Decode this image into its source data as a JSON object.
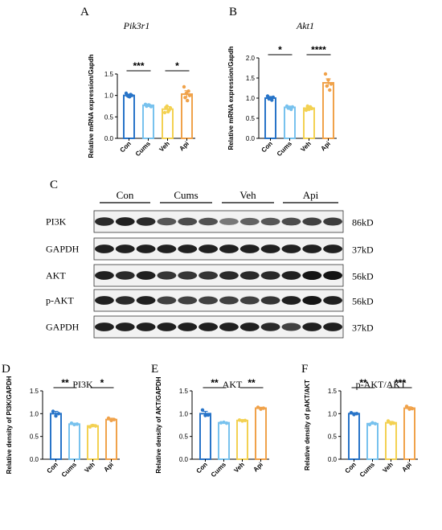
{
  "panels": [
    {
      "letter": "A",
      "title": "Pik3r1",
      "title_style": "italic",
      "ylabel": "Relative mRNA expression/Gapdh",
      "ylim": [
        0,
        1.5
      ],
      "ticks": [
        "0.0",
        "0.5",
        "1.0",
        "1.5"
      ],
      "categories": [
        "Con",
        "Cums",
        "Veh",
        "Api"
      ],
      "means": [
        1.0,
        0.77,
        0.68,
        1.03
      ],
      "errors": [
        0.03,
        0.02,
        0.06,
        0.08
      ],
      "points": [
        [
          1.05,
          1.0,
          0.98,
          0.97,
          1.02,
          1.0
        ],
        [
          0.79,
          0.75,
          0.77,
          0.78,
          0.76,
          0.74
        ],
        [
          0.6,
          0.72,
          0.75,
          0.62,
          0.66,
          0.71
        ],
        [
          1.2,
          0.95,
          1.05,
          0.88,
          1.1,
          1.0
        ]
      ],
      "sig": [
        {
          "from": 0,
          "to": 1,
          "label": "***"
        },
        {
          "from": 2,
          "to": 3,
          "label": "*"
        }
      ]
    },
    {
      "letter": "B",
      "title": "Akt1",
      "title_style": "italic",
      "ylabel": "Relative mRNA expression/Gapdh",
      "ylim": [
        0,
        2.0
      ],
      "ticks": [
        "0.0",
        "0.5",
        "1.0",
        "1.5",
        "2.0"
      ],
      "categories": [
        "Con",
        "Cums",
        "Veh",
        "Api"
      ],
      "means": [
        1.0,
        0.77,
        0.75,
        1.38
      ],
      "errors": [
        0.04,
        0.03,
        0.05,
        0.1
      ],
      "points": [
        [
          1.05,
          0.98,
          1.0,
          0.95,
          1.02
        ],
        [
          0.8,
          0.75,
          0.77,
          0.72,
          0.78
        ],
        [
          0.7,
          0.8,
          0.72,
          0.78,
          0.74
        ],
        [
          1.6,
          1.3,
          1.45,
          1.2,
          1.35
        ]
      ],
      "sig": [
        {
          "from": 0,
          "to": 1,
          "label": "*"
        },
        {
          "from": 2,
          "to": 3,
          "label": "****"
        }
      ]
    },
    {
      "letter": "D",
      "title": "PI3K",
      "title_style": "normal",
      "ylabel": "Relative density of PI3K/GAPDH",
      "ylim": [
        0,
        1.5
      ],
      "ticks": [
        "0.0",
        "0.5",
        "1.0",
        "1.5"
      ],
      "categories": [
        "Con",
        "Cums",
        "Veh",
        "Api"
      ],
      "means": [
        1.0,
        0.77,
        0.73,
        0.87
      ],
      "errors": [
        0.05,
        0.02,
        0.03,
        0.03
      ],
      "points": [
        [
          1.05,
          0.95,
          1.0
        ],
        [
          0.79,
          0.76,
          0.77
        ],
        [
          0.71,
          0.74,
          0.73
        ],
        [
          0.9,
          0.85,
          0.87
        ]
      ],
      "sig": [
        {
          "from": 0,
          "to": 1,
          "label": "**"
        },
        {
          "from": 2,
          "to": 3,
          "label": "*"
        }
      ]
    },
    {
      "letter": "E",
      "title": "AKT",
      "title_style": "normal",
      "ylabel": "Relative density of AKT/GAPDH",
      "ylim": [
        0,
        1.5
      ],
      "ticks": [
        "0.0",
        "0.5",
        "1.0",
        "1.5"
      ],
      "categories": [
        "Con",
        "Cums",
        "Veh",
        "Api"
      ],
      "means": [
        1.0,
        0.8,
        0.85,
        1.12
      ],
      "errors": [
        0.05,
        0.01,
        0.02,
        0.02
      ],
      "points": [
        [
          1.08,
          0.96,
          0.97
        ],
        [
          0.8,
          0.81,
          0.79
        ],
        [
          0.86,
          0.84,
          0.85
        ],
        [
          1.14,
          1.1,
          1.12
        ]
      ],
      "sig": [
        {
          "from": 0,
          "to": 1,
          "label": "**"
        },
        {
          "from": 2,
          "to": 3,
          "label": "**"
        }
      ]
    },
    {
      "letter": "F",
      "title": "p-AKT/AKT",
      "title_style": "normal",
      "ylabel": "Relative density of pAKT/AKT",
      "ylim": [
        0,
        1.5
      ],
      "ticks": [
        "0.0",
        "0.5",
        "1.0",
        "1.5"
      ],
      "categories": [
        "Con",
        "Cums",
        "Veh",
        "Api"
      ],
      "means": [
        1.0,
        0.78,
        0.8,
        1.12
      ],
      "errors": [
        0.02,
        0.02,
        0.03,
        0.03
      ],
      "points": [
        [
          1.02,
          0.98,
          1.0
        ],
        [
          0.76,
          0.8,
          0.78
        ],
        [
          0.84,
          0.78,
          0.79
        ],
        [
          1.16,
          1.1,
          1.11
        ]
      ],
      "sig": [
        {
          "from": 0,
          "to": 1,
          "label": "**"
        },
        {
          "from": 2,
          "to": 3,
          "label": "***"
        }
      ]
    }
  ],
  "colors": [
    "#2874c8",
    "#78c2ee",
    "#f3d152",
    "#f0a24a"
  ],
  "blot": {
    "letter": "C",
    "groups": [
      "Con",
      "Cums",
      "Veh",
      "Api"
    ],
    "rows": [
      {
        "label": "PI3K",
        "size": "86kD",
        "intensity": [
          0.9,
          0.95,
          0.9,
          0.7,
          0.75,
          0.72,
          0.55,
          0.65,
          0.7,
          0.75,
          0.8,
          0.82
        ]
      },
      {
        "label": "GAPDH",
        "size": "37kD",
        "intensity": [
          0.95,
          0.95,
          0.95,
          0.95,
          0.95,
          0.95,
          0.95,
          0.95,
          0.95,
          0.95,
          0.95,
          0.95
        ]
      },
      {
        "label": "AKT",
        "size": "56kD",
        "intensity": [
          0.95,
          0.9,
          0.95,
          0.85,
          0.85,
          0.85,
          0.9,
          0.9,
          0.9,
          0.95,
          1.0,
          1.0
        ]
      },
      {
        "label": "p-AKT",
        "size": "56kD",
        "intensity": [
          0.95,
          0.9,
          0.95,
          0.8,
          0.8,
          0.8,
          0.8,
          0.8,
          0.85,
          0.95,
          1.0,
          0.95
        ]
      },
      {
        "label": "GAPDH",
        "size": "37kD",
        "intensity": [
          0.95,
          0.95,
          0.95,
          0.95,
          0.95,
          0.95,
          0.95,
          0.95,
          0.9,
          0.8,
          0.95,
          0.95
        ]
      }
    ]
  },
  "chart_data": [
    {
      "type": "bar",
      "title": "Pik3r1",
      "ylabel": "Relative mRNA expression/Gapdh",
      "categories": [
        "Con",
        "Cums",
        "Veh",
        "Api"
      ],
      "values": [
        1.0,
        0.77,
        0.68,
        1.03
      ],
      "ylim": [
        0,
        1.5
      ]
    },
    {
      "type": "bar",
      "title": "Akt1",
      "ylabel": "Relative mRNA expression/Gapdh",
      "categories": [
        "Con",
        "Cums",
        "Veh",
        "Api"
      ],
      "values": [
        1.0,
        0.77,
        0.75,
        1.38
      ],
      "ylim": [
        0,
        2.0
      ]
    },
    {
      "type": "bar",
      "title": "PI3K",
      "ylabel": "Relative density of PI3K/GAPDH",
      "categories": [
        "Con",
        "Cums",
        "Veh",
        "Api"
      ],
      "values": [
        1.0,
        0.77,
        0.73,
        0.87
      ],
      "ylim": [
        0,
        1.5
      ]
    },
    {
      "type": "bar",
      "title": "AKT",
      "ylabel": "Relative density of AKT/GAPDH",
      "categories": [
        "Con",
        "Cums",
        "Veh",
        "Api"
      ],
      "values": [
        1.0,
        0.8,
        0.85,
        1.12
      ],
      "ylim": [
        0,
        1.5
      ]
    },
    {
      "type": "bar",
      "title": "p-AKT/AKT",
      "ylabel": "Relative density of pAKT/AKT",
      "categories": [
        "Con",
        "Cums",
        "Veh",
        "Api"
      ],
      "values": [
        1.0,
        0.78,
        0.8,
        1.12
      ],
      "ylim": [
        0,
        1.5
      ]
    }
  ]
}
